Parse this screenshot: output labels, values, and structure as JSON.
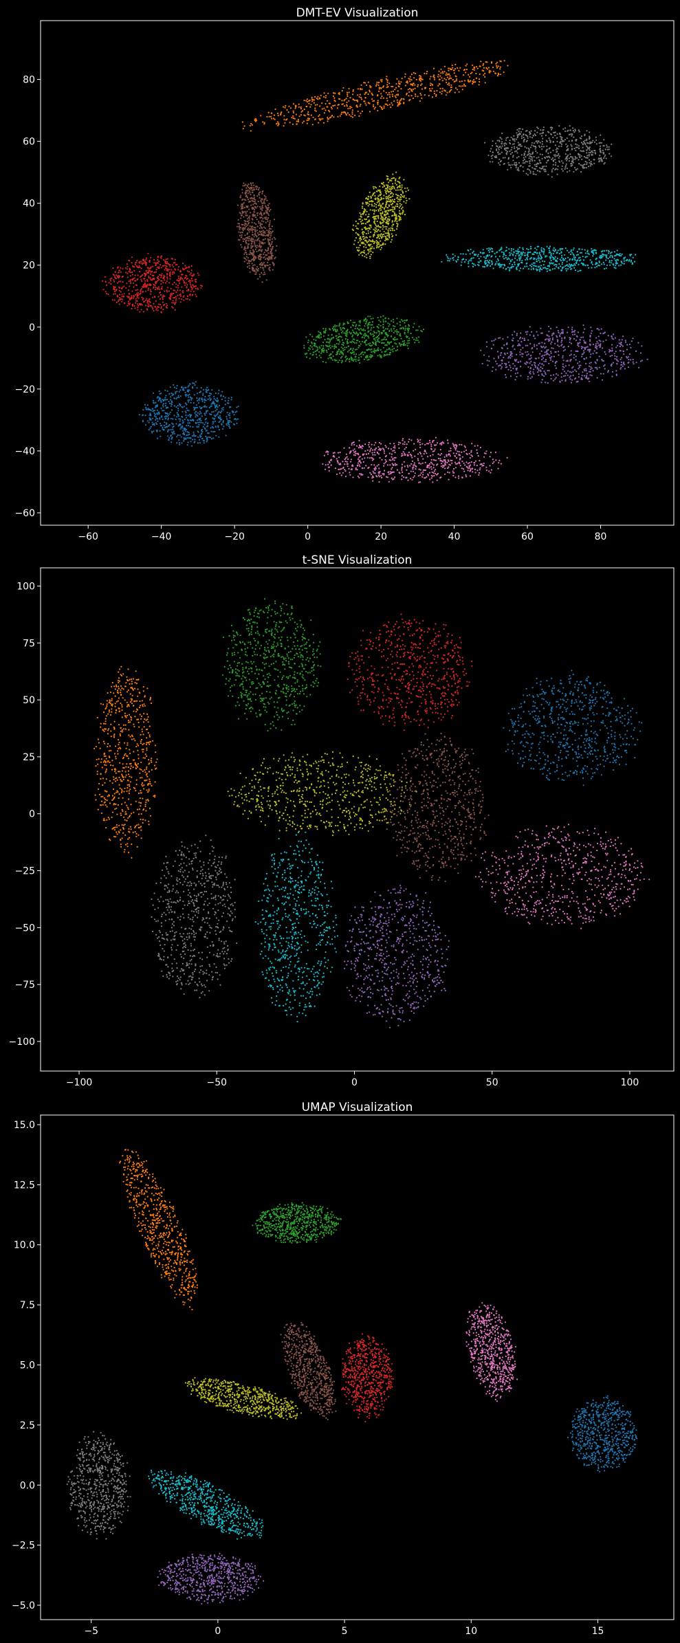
{
  "chart_data": [
    {
      "type": "scatter",
      "title": "DMT-EV Visualization",
      "xlabel": "",
      "ylabel": "",
      "xlim": [
        -73,
        100
      ],
      "ylim": [
        -64,
        99
      ],
      "xticks": [
        -60,
        -40,
        -20,
        0,
        20,
        40,
        60,
        80
      ],
      "yticks": [
        -60,
        -40,
        -20,
        0,
        20,
        40,
        60,
        80
      ],
      "clusters": [
        {
          "color": "#ff7f0e",
          "center": [
            20,
            75
          ],
          "spread": [
            37,
            5
          ],
          "angle": 15
        },
        {
          "color": "#7f7f7f",
          "center": [
            66,
            57
          ],
          "spread": [
            17,
            8
          ],
          "angle": 0
        },
        {
          "color": "#8c564b",
          "center": [
            -14,
            31
          ],
          "spread": [
            5,
            16
          ],
          "angle": 5
        },
        {
          "color": "#bcbd22",
          "center": [
            20,
            36
          ],
          "spread": [
            6,
            14
          ],
          "angle": -20
        },
        {
          "color": "#d62728",
          "center": [
            -42,
            14
          ],
          "spread": [
            13,
            9
          ],
          "angle": 0
        },
        {
          "color": "#17becf",
          "center": [
            64,
            22
          ],
          "spread": [
            26,
            4
          ],
          "angle": 0
        },
        {
          "color": "#2ca02c",
          "center": [
            15,
            -4
          ],
          "spread": [
            16,
            7
          ],
          "angle": 10
        },
        {
          "color": "#9467bd",
          "center": [
            70,
            -9
          ],
          "spread": [
            22,
            9
          ],
          "angle": 0
        },
        {
          "color": "#1f77b4",
          "center": [
            -32,
            -28
          ],
          "spread": [
            13,
            10
          ],
          "angle": 0
        },
        {
          "color": "#e377c2",
          "center": [
            28,
            -43
          ],
          "spread": [
            25,
            7
          ],
          "angle": 0
        }
      ]
    },
    {
      "type": "scatter",
      "title": "t-SNE Visualization",
      "xlabel": "",
      "ylabel": "",
      "xlim": [
        -114,
        116
      ],
      "ylim": [
        -113,
        108
      ],
      "xticks": [
        -100,
        -50,
        0,
        50,
        100
      ],
      "yticks": [
        -100,
        -75,
        -50,
        -25,
        0,
        25,
        50,
        75,
        100
      ],
      "clusters": [
        {
          "color": "#ff7f0e",
          "center": [
            -83,
            23
          ],
          "spread": [
            11,
            40
          ],
          "angle": 0
        },
        {
          "color": "#2ca02c",
          "center": [
            -30,
            65
          ],
          "spread": [
            18,
            28
          ],
          "angle": 0
        },
        {
          "color": "#d62728",
          "center": [
            20,
            62
          ],
          "spread": [
            22,
            24
          ],
          "angle": 0
        },
        {
          "color": "#1f77b4",
          "center": [
            79,
            37
          ],
          "spread": [
            24,
            24
          ],
          "angle": 0
        },
        {
          "color": "#bcbd22",
          "center": [
            -12,
            9
          ],
          "spread": [
            32,
            18
          ],
          "angle": 0
        },
        {
          "color": "#8c564b",
          "center": [
            30,
            3
          ],
          "spread": [
            18,
            31
          ],
          "angle": 0
        },
        {
          "color": "#e377c2",
          "center": [
            76,
            -28
          ],
          "spread": [
            30,
            22
          ],
          "angle": 0
        },
        {
          "color": "#7f7f7f",
          "center": [
            -58,
            -46
          ],
          "spread": [
            15,
            35
          ],
          "angle": 0
        },
        {
          "color": "#17becf",
          "center": [
            -21,
            -50
          ],
          "spread": [
            14,
            40
          ],
          "angle": 0
        },
        {
          "color": "#9467bd",
          "center": [
            15,
            -62
          ],
          "spread": [
            19,
            30
          ],
          "angle": 0
        }
      ]
    },
    {
      "type": "scatter",
      "title": "UMAP Visualization",
      "xlabel": "",
      "ylabel": "",
      "xlim": [
        -7,
        18
      ],
      "ylim": [
        -5.6,
        15.4
      ],
      "xticks": [
        -5,
        0,
        5,
        10,
        15
      ],
      "yticks": [
        -5.0,
        -2.5,
        0.0,
        2.5,
        5.0,
        7.5,
        10.0,
        12.5,
        15.0
      ],
      "tick_labels_y": [
        "−5.0",
        "−2.5",
        "0.0",
        "2.5",
        "5.0",
        "7.5",
        "10.0",
        "12.5",
        "15.0"
      ],
      "clusters": [
        {
          "color": "#ff7f0e",
          "center": [
            -2.3,
            10.7
          ],
          "spread": [
            0.8,
            3.5
          ],
          "angle": 22
        },
        {
          "color": "#2ca02c",
          "center": [
            3.1,
            10.9
          ],
          "spread": [
            1.7,
            0.8
          ],
          "angle": 0
        },
        {
          "color": "#8c564b",
          "center": [
            3.6,
            4.8
          ],
          "spread": [
            0.8,
            2.1
          ],
          "angle": 20
        },
        {
          "color": "#d62728",
          "center": [
            5.9,
            4.5
          ],
          "spread": [
            1.0,
            1.7
          ],
          "angle": 0
        },
        {
          "color": "#bcbd22",
          "center": [
            1.0,
            3.6
          ],
          "spread": [
            2.3,
            0.6
          ],
          "angle": -15
        },
        {
          "color": "#e377c2",
          "center": [
            10.8,
            5.6
          ],
          "spread": [
            0.9,
            2.0
          ],
          "angle": 12
        },
        {
          "color": "#1f77b4",
          "center": [
            15.2,
            2.1
          ],
          "spread": [
            1.3,
            1.5
          ],
          "angle": 0
        },
        {
          "color": "#7f7f7f",
          "center": [
            -4.7,
            0.0
          ],
          "spread": [
            1.2,
            2.1
          ],
          "angle": 0
        },
        {
          "color": "#17becf",
          "center": [
            -0.4,
            -0.8
          ],
          "spread": [
            2.5,
            0.8
          ],
          "angle": -30
        },
        {
          "color": "#9467bd",
          "center": [
            -0.3,
            -3.9
          ],
          "spread": [
            2.0,
            1.0
          ],
          "angle": 0
        }
      ]
    }
  ]
}
